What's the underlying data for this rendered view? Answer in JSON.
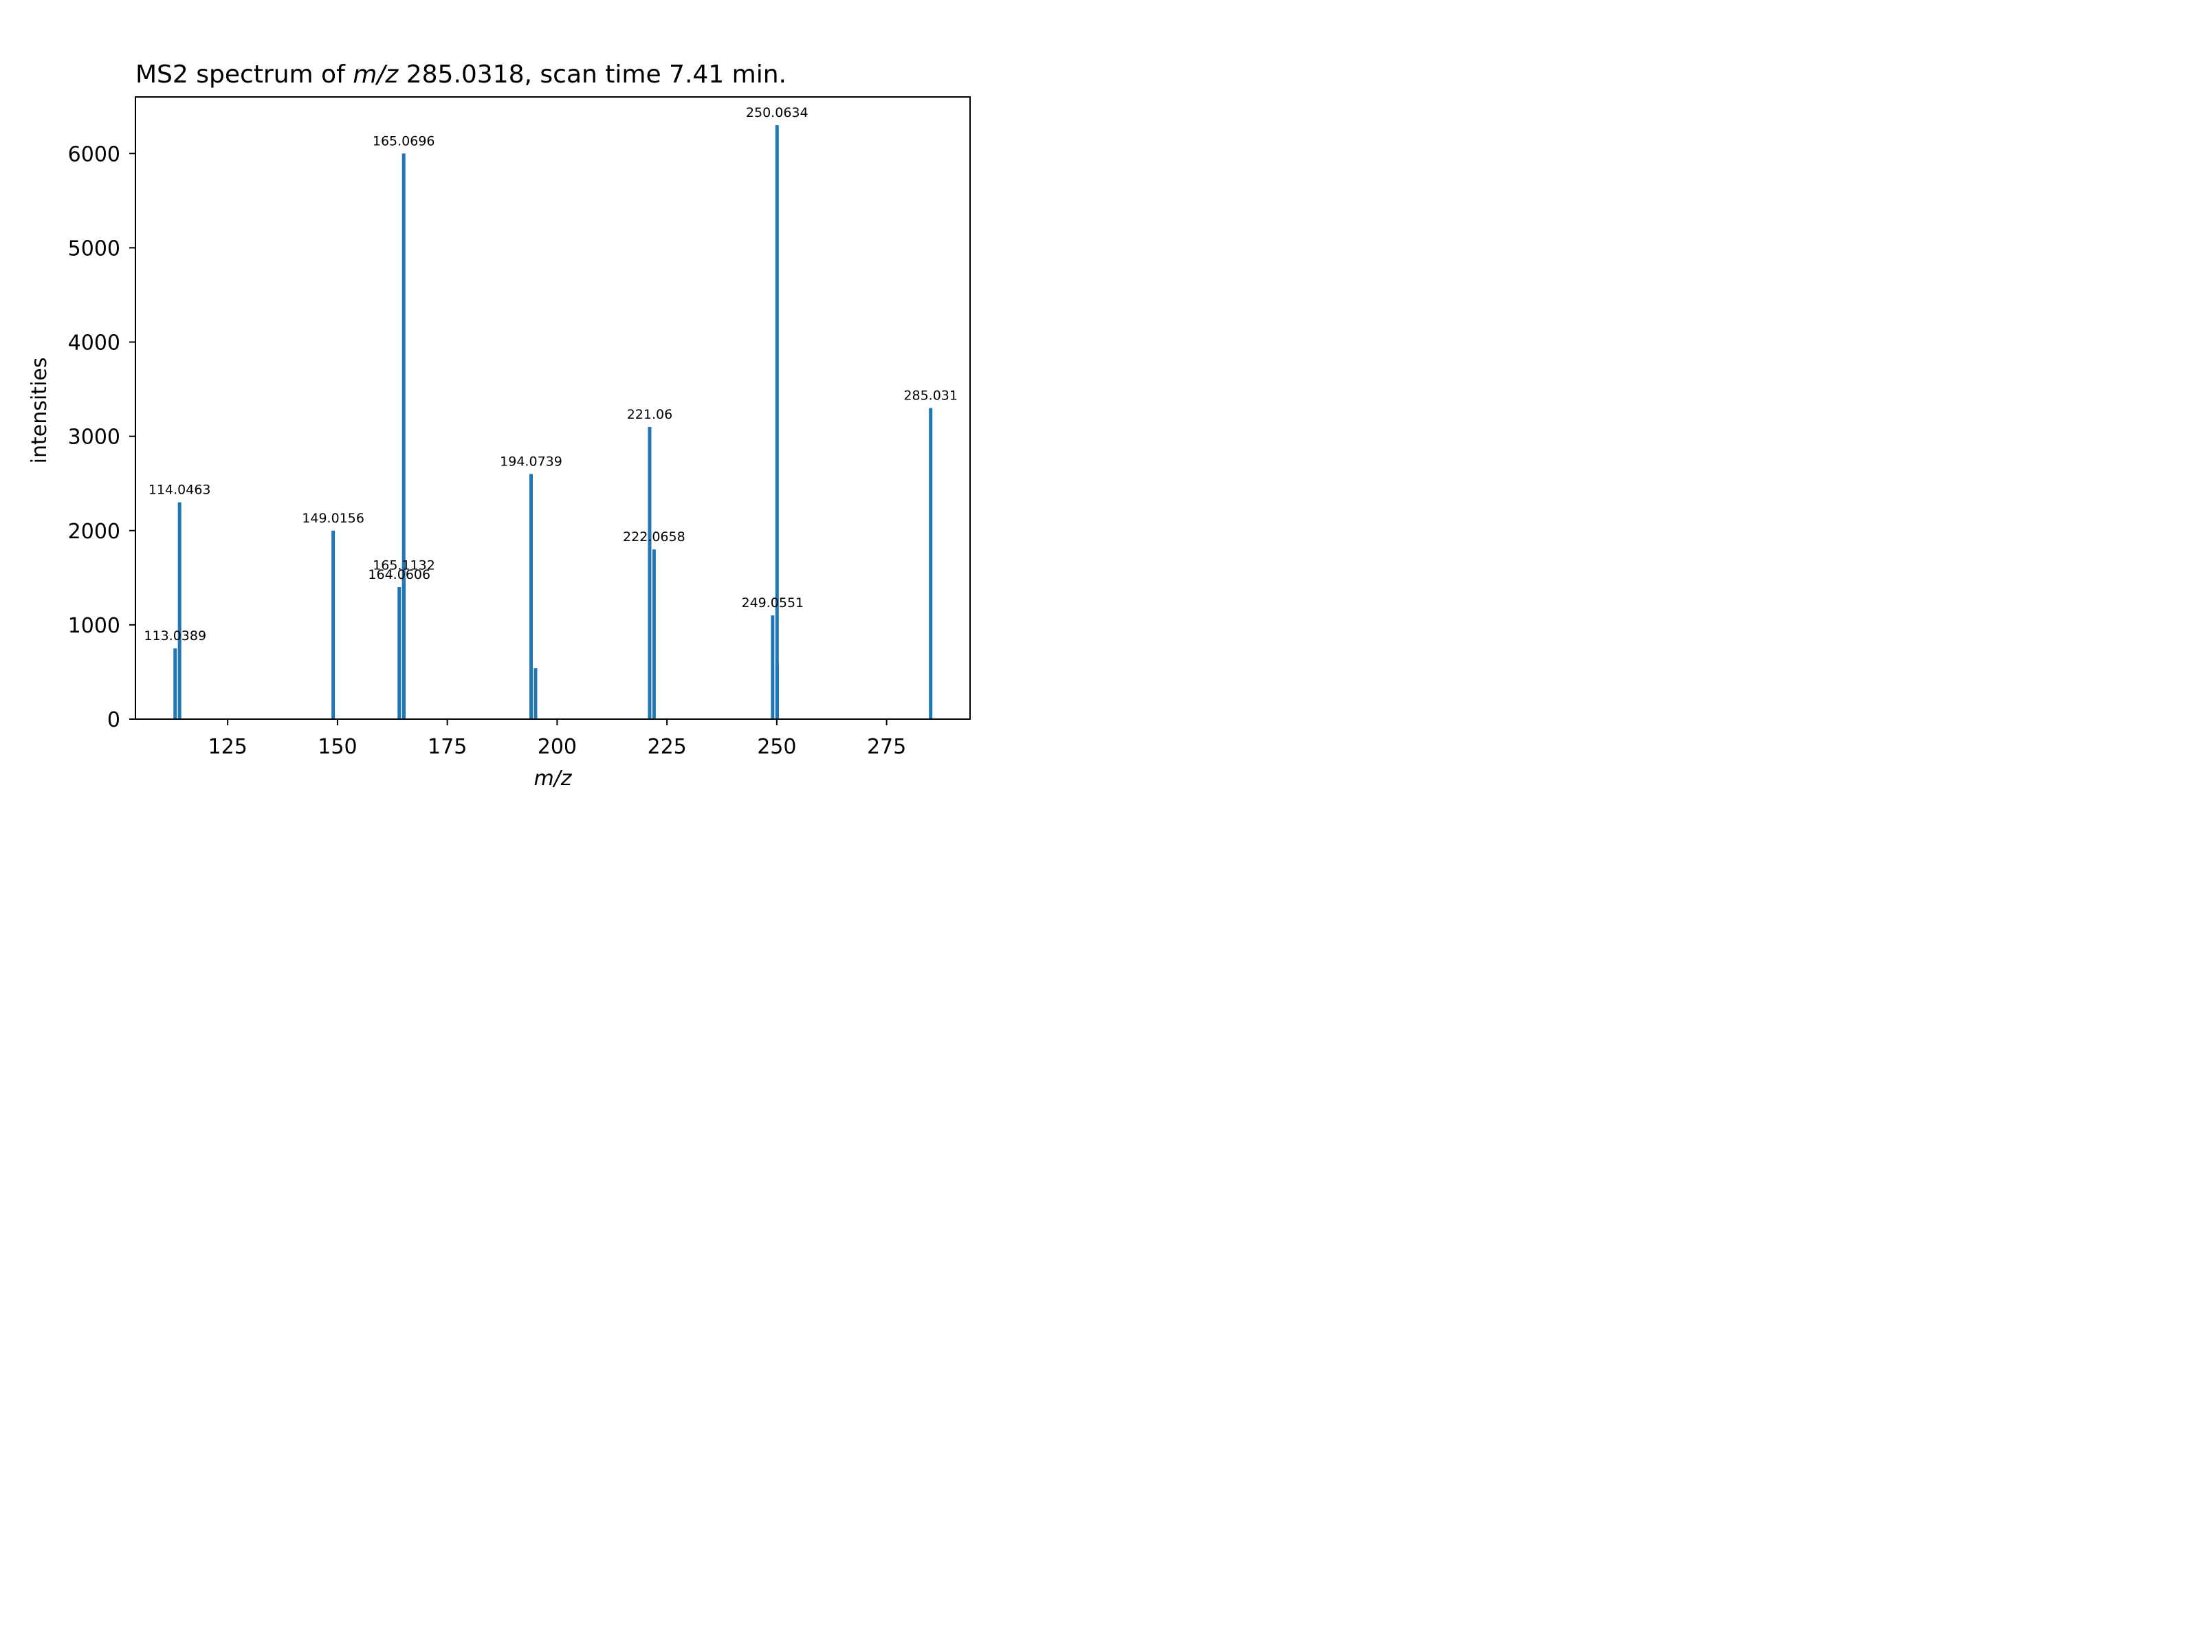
{
  "chart_data": {
    "type": "bar",
    "title": {
      "prefix": "MS2 spectrum of ",
      "var": "m/z",
      "suffix": " 285.0318, scan time 7.41 min."
    },
    "xlabel": "m/z",
    "ylabel": "intensities",
    "xlim": [
      104,
      294
    ],
    "ylim": [
      0,
      6600
    ],
    "xticks": [
      125,
      150,
      175,
      200,
      225,
      250,
      275
    ],
    "yticks": [
      0,
      1000,
      2000,
      3000,
      4000,
      5000,
      6000
    ],
    "grid": false,
    "bar_color": "#1f77b4",
    "peaks": [
      {
        "mz": 113.0389,
        "intensity": 750,
        "label": "113.0389"
      },
      {
        "mz": 114.0463,
        "intensity": 2300,
        "label": "114.0463"
      },
      {
        "mz": 149.0156,
        "intensity": 2000,
        "label": "149.0156"
      },
      {
        "mz": 164.0606,
        "intensity": 1400,
        "label": "164.0606"
      },
      {
        "mz": 165.0696,
        "intensity": 6000,
        "label": "165.0696"
      },
      {
        "mz": 165.1132,
        "intensity": 1500,
        "label": "165.1132"
      },
      {
        "mz": 194.0739,
        "intensity": 2600,
        "label": "194.0739"
      },
      {
        "mz": 195.0767,
        "intensity": 540,
        "label": ""
      },
      {
        "mz": 221.06,
        "intensity": 3100,
        "label": "221.06"
      },
      {
        "mz": 222.0658,
        "intensity": 1800,
        "label": "222.0658"
      },
      {
        "mz": 249.0551,
        "intensity": 1100,
        "label": "249.0551"
      },
      {
        "mz": 250.0634,
        "intensity": 6300,
        "label": "250.0634"
      },
      {
        "mz": 250.09,
        "intensity": 600,
        "label": ""
      },
      {
        "mz": 285.031,
        "intensity": 3300,
        "label": "285.031"
      }
    ]
  }
}
